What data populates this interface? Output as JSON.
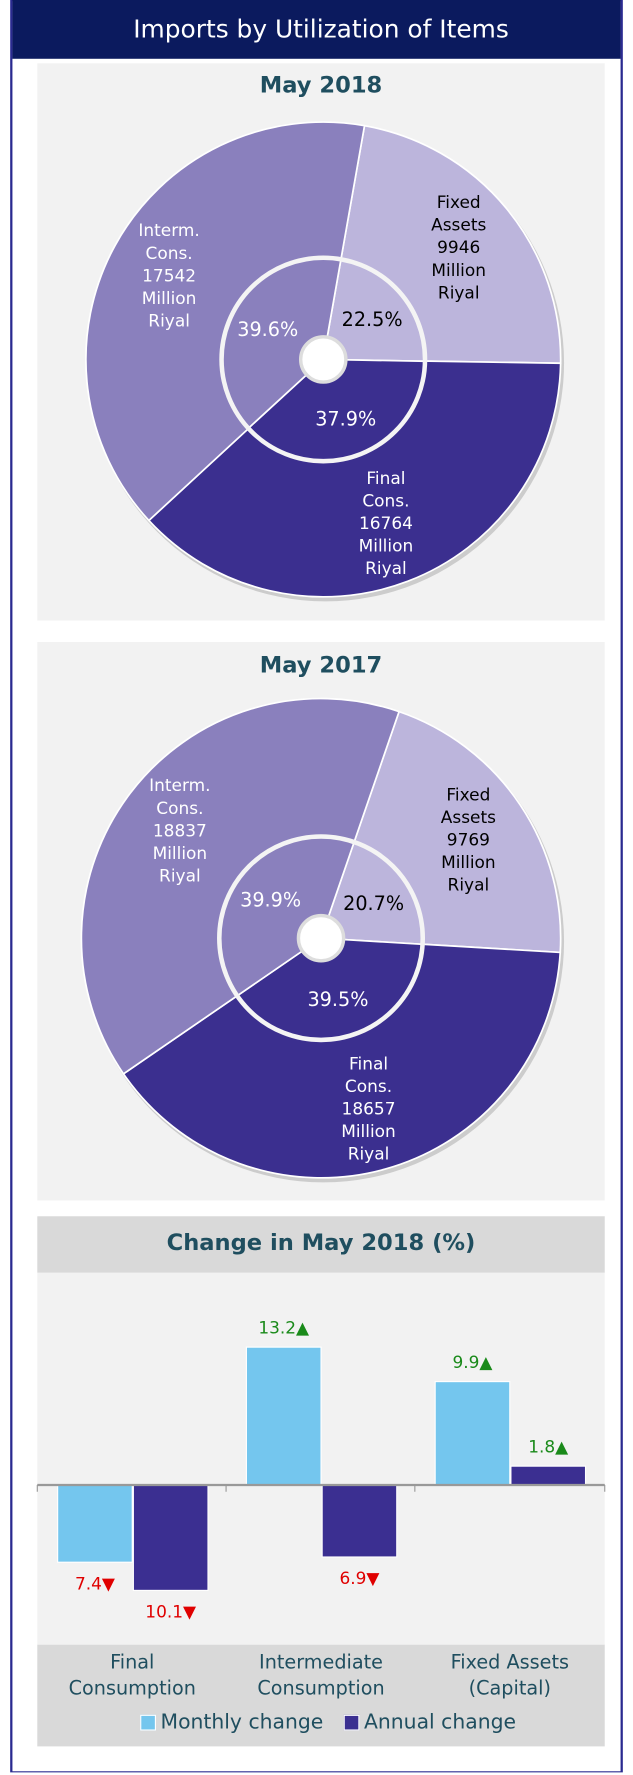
{
  "header": {
    "title": "Imports by Utilization of Items"
  },
  "chart_data": [
    {
      "type": "pie",
      "title": "May 2018",
      "categories": [
        "Fixed Assets",
        "Final Cons.",
        "Interm. Cons."
      ],
      "values": [
        9946,
        16764,
        17542
      ],
      "unit": "Million Riyal",
      "colors": [
        "#bcb5dc",
        "#3b2f8f",
        "#8a80bd"
      ],
      "shares": [
        22.5,
        37.9,
        39.6
      ],
      "share_labels": [
        "22.5%",
        "37.9%",
        "39.6%"
      ]
    },
    {
      "type": "pie",
      "title": "May 2017",
      "categories": [
        "Fixed Assets",
        "Final Cons.",
        "Interm. Cons."
      ],
      "values": [
        9769,
        18657,
        18837
      ],
      "unit": "Million Riyal",
      "colors": [
        "#bcb5dc",
        "#3b2f8f",
        "#8a80bd"
      ],
      "shares": [
        20.7,
        39.5,
        39.9
      ],
      "share_labels": [
        "20.7%",
        "39.5%",
        "39.9%"
      ]
    },
    {
      "type": "bar",
      "title": "Change in May 2018 (%)",
      "categories": [
        "Final Consumption",
        "Intermediate Consumption",
        "Fixed Assets (Capital)"
      ],
      "ylim": [
        -14,
        20
      ],
      "series": [
        {
          "name": "Monthly change",
          "color": "#74c6ee",
          "values": [
            -7.4,
            13.2,
            9.9
          ],
          "value_labels": [
            "7.4▼",
            "13.2▲",
            "9.9▲"
          ]
        },
        {
          "name": "Annual change",
          "color": "#3b2f91",
          "values": [
            -10.1,
            -6.9,
            1.8
          ],
          "value_labels": [
            "10.1▼",
            "6.9▼",
            "1.8▲"
          ]
        }
      ]
    }
  ]
}
